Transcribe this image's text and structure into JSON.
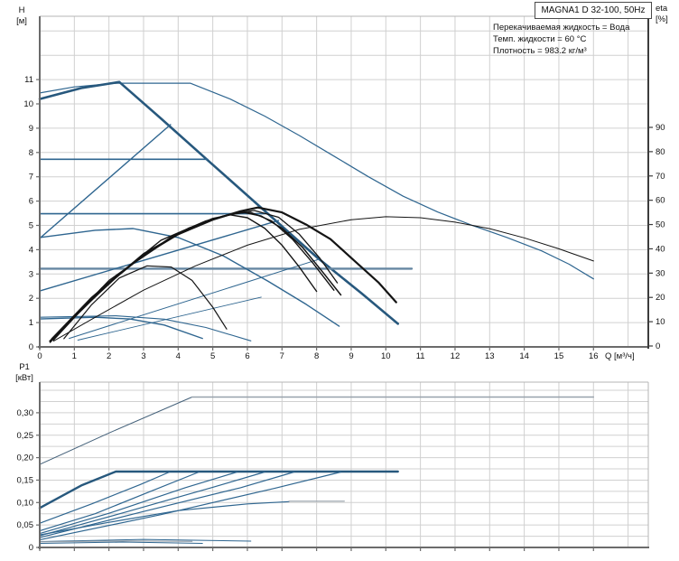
{
  "header": {
    "title": "MAGNA1 D 32-100, 50Hz",
    "info_lines": [
      "Перекачиваемая жидкость = Вода",
      "Темп. жидкости = 60 °C",
      "Плотность = 983.2 кг/м³"
    ]
  },
  "colors": {
    "blue": "#2f6690",
    "thickBlue": "#27587d",
    "grayBlue": "#6687a2",
    "darkSlate": "#44617a",
    "gray": "#97a1ab",
    "black": "#141414",
    "grid": "#d0d0d0",
    "border": "#b5b5b5",
    "axis": "#6b6b6b",
    "text": "#111111"
  },
  "chart_data": [
    {
      "id": "hq",
      "type": "line",
      "title": "H-Q pump curves with efficiency",
      "xlabel": "Q [м³/ч]",
      "ylabel": "H [м]",
      "y2label": "eta [%]",
      "xlim": [
        0,
        17.6
      ],
      "ylim": [
        0,
        13.6
      ],
      "y2lim": [
        0,
        100
      ],
      "grid": true,
      "x_ticks": [
        0,
        1,
        2,
        3,
        4,
        5,
        6,
        7,
        8,
        9,
        10,
        11,
        12,
        13,
        14,
        15,
        16
      ],
      "y_ticks": [
        0,
        1,
        2,
        3,
        4,
        5,
        6,
        7,
        8,
        9,
        10,
        11
      ],
      "y2_ticks": [
        0,
        10,
        20,
        30,
        40,
        50,
        60,
        70,
        80,
        90
      ],
      "series": [
        {
          "name": "qh-max-parallel",
          "color": "blue",
          "w": 1.2,
          "pts": [
            [
              0,
              10.45
            ],
            [
              1,
              10.7
            ],
            [
              2.2,
              10.85
            ],
            [
              4.35,
              10.85
            ],
            [
              5.5,
              10.2
            ],
            [
              6.5,
              9.5
            ],
            [
              7.5,
              8.7
            ],
            [
              8.5,
              7.85
            ],
            [
              9.5,
              7
            ],
            [
              10.5,
              6.2
            ],
            [
              11.5,
              5.55
            ],
            [
              12.5,
              5
            ],
            [
              13.5,
              4.5
            ],
            [
              14.5,
              3.95
            ],
            [
              15.3,
              3.4
            ],
            [
              16,
              2.8
            ]
          ]
        },
        {
          "name": "qh-max-single",
          "color": "thickBlue",
          "w": 2.6,
          "pts": [
            [
              0,
              10.2
            ],
            [
              1.2,
              10.65
            ],
            [
              2.3,
              10.9
            ],
            [
              3.5,
              9.4
            ],
            [
              5,
              7.5
            ],
            [
              6.5,
              5.6
            ],
            [
              8,
              3.7
            ],
            [
              9.3,
              2.2
            ],
            [
              10.35,
              0.95
            ]
          ]
        },
        {
          "name": "cp-curve-7.7m",
          "color": "blue",
          "w": 1.6,
          "pts": [
            [
              0,
              7.72
            ],
            [
              4.85,
              7.72
            ]
          ]
        },
        {
          "name": "cp-curve-5.5m",
          "color": "blue",
          "w": 1.6,
          "pts": [
            [
              0,
              5.48
            ],
            [
              6.5,
              5.48
            ]
          ]
        },
        {
          "name": "cp-curve-3.2m",
          "color": "grayBlue",
          "w": 2.4,
          "pts": [
            [
              0,
              3.22
            ],
            [
              10.75,
              3.22
            ]
          ]
        },
        {
          "name": "qh-min-single",
          "color": "blue",
          "w": 1.4,
          "pts": [
            [
              0,
              1.15
            ],
            [
              1.6,
              1.22
            ],
            [
              2.6,
              1.15
            ],
            [
              3.6,
              0.9
            ],
            [
              4.7,
              0.35
            ]
          ]
        },
        {
          "name": "qh-min-parallel",
          "color": "blue",
          "w": 1.1,
          "pts": [
            [
              0,
              1.22
            ],
            [
              2.2,
              1.28
            ],
            [
              3.6,
              1.14
            ],
            [
              4.8,
              0.8
            ],
            [
              6.1,
              0.25
            ]
          ]
        },
        {
          "name": "pp-curve-high",
          "color": "blue",
          "w": 1.4,
          "pts": [
            [
              0,
              4.47
            ],
            [
              3.78,
              9.15
            ]
          ]
        },
        {
          "name": "pp-curve-mid",
          "color": "blue",
          "w": 1.4,
          "pts": [
            [
              0,
              2.3
            ],
            [
              6.9,
              5.2
            ]
          ]
        },
        {
          "name": "pp-curve-low",
          "color": "blue",
          "w": 1,
          "pts": [
            [
              0.85,
              0.35
            ],
            [
              8.05,
              3.6
            ]
          ]
        },
        {
          "name": "pp-curve-low-2",
          "color": "blue",
          "w": 0.9,
          "pts": [
            [
              1.1,
              0.28
            ],
            [
              6.4,
              2.05
            ]
          ]
        },
        {
          "name": "qh-speed-mid",
          "color": "blue",
          "w": 1.4,
          "pts": [
            [
              0,
              4.5
            ],
            [
              1.6,
              4.8
            ],
            [
              2.7,
              4.87
            ],
            [
              4,
              4.5
            ],
            [
              5.3,
              3.75
            ],
            [
              6.6,
              2.7
            ],
            [
              7.7,
              1.75
            ],
            [
              8.65,
              0.85
            ]
          ]
        },
        {
          "name": "eta-max-parallel",
          "color": "black",
          "w": 1,
          "axis": "y2",
          "pts": [
            [
              0.4,
              2
            ],
            [
              1.5,
              11
            ],
            [
              3,
              23
            ],
            [
              4.5,
              33
            ],
            [
              6,
              41.5
            ],
            [
              7.5,
              48
            ],
            [
              9,
              52
            ],
            [
              10,
              53.2
            ],
            [
              11,
              52.8
            ],
            [
              12,
              51
            ],
            [
              13,
              48.3
            ],
            [
              14,
              44.5
            ],
            [
              15,
              40
            ],
            [
              16,
              35
            ]
          ]
        },
        {
          "name": "eta-max-single",
          "color": "black",
          "w": 2.2,
          "axis": "y2",
          "pts": [
            [
              0.3,
              2
            ],
            [
              1,
              12
            ],
            [
              2,
              26
            ],
            [
              3,
              37.5
            ],
            [
              4,
              46
            ],
            [
              5,
              52
            ],
            [
              5.8,
              55.5
            ],
            [
              6.3,
              57
            ],
            [
              7,
              55
            ],
            [
              7.7,
              50
            ],
            [
              8.4,
              44
            ],
            [
              9.1,
              35
            ],
            [
              9.8,
              26
            ],
            [
              10.3,
              18
            ]
          ]
        },
        {
          "name": "eta-curve-3",
          "color": "black",
          "w": 1.5,
          "axis": "y2",
          "pts": [
            [
              0.35,
              3
            ],
            [
              1.5,
              20
            ],
            [
              3,
              38
            ],
            [
              4.3,
              48.5
            ],
            [
              5.3,
              53.5
            ],
            [
              5.9,
              55
            ],
            [
              6.4,
              53.5
            ],
            [
              7,
              48.5
            ],
            [
              7.6,
              40.5
            ],
            [
              8.2,
              30
            ],
            [
              8.7,
              21
            ]
          ]
        },
        {
          "name": "eta-curve-4",
          "color": "black",
          "w": 1.4,
          "axis": "y2",
          "pts": [
            [
              0.4,
              2.5
            ],
            [
              1.8,
              24
            ],
            [
              3.5,
              43.5
            ],
            [
              4.8,
              51.5
            ],
            [
              5.6,
              54.5
            ],
            [
              6.1,
              55
            ],
            [
              6.7,
              51.5
            ],
            [
              7.3,
              44
            ],
            [
              7.9,
              34
            ],
            [
              8.5,
              23
            ]
          ]
        },
        {
          "name": "eta-curve-5",
          "color": "black",
          "w": 1.4,
          "axis": "y2",
          "pts": [
            [
              0.3,
              1.5
            ],
            [
              1.2,
              15
            ],
            [
              2.5,
              32
            ],
            [
              4,
              46.5
            ],
            [
              5,
              52.5
            ],
            [
              5.5,
              54
            ],
            [
              6,
              52.8
            ],
            [
              6.5,
              48.5
            ],
            [
              7,
              41.5
            ],
            [
              7.5,
              32.5
            ],
            [
              8,
              22.5
            ]
          ]
        },
        {
          "name": "eta-curve-6",
          "color": "black",
          "w": 1.3,
          "axis": "y2",
          "pts": [
            [
              0.45,
              4
            ],
            [
              2,
              27
            ],
            [
              3.8,
              45
            ],
            [
              5,
              52
            ],
            [
              5.7,
              54.8
            ],
            [
              6.2,
              55.8
            ],
            [
              6.9,
              53
            ],
            [
              7.5,
              46
            ],
            [
              8.1,
              36
            ],
            [
              8.6,
              26
            ]
          ]
        },
        {
          "name": "eta-min",
          "color": "black",
          "w": 1.2,
          "axis": "y2",
          "pts": [
            [
              0.7,
              3
            ],
            [
              1.5,
              17
            ],
            [
              2.3,
              28
            ],
            [
              3.1,
              33
            ],
            [
              3.8,
              32.5
            ],
            [
              4.4,
              27
            ],
            [
              5,
              16
            ],
            [
              5.4,
              7
            ]
          ]
        }
      ]
    },
    {
      "id": "p1",
      "type": "line",
      "title": "P1 power curves",
      "xlabel": "",
      "ylabel": "P1 [кВт]",
      "xlim": [
        0,
        17.6
      ],
      "ylim": [
        0,
        0.368
      ],
      "grid": true,
      "x_labels": false,
      "x_ticks": [
        0,
        1,
        2,
        3,
        4,
        5,
        6,
        7,
        8,
        9,
        10,
        11,
        12,
        13,
        14,
        15,
        16
      ],
      "y_ticks": [
        {
          "v": 0,
          "label": "0"
        },
        {
          "v": 0.05,
          "label": "0,05"
        },
        {
          "v": 0.1,
          "label": "0,10"
        },
        {
          "v": 0.15,
          "label": "0,15"
        },
        {
          "v": 0.2,
          "label": "0,20"
        },
        {
          "v": 0.25,
          "label": "0,25"
        },
        {
          "v": 0.3,
          "label": "0,30"
        }
      ],
      "series": [
        {
          "name": "p1-max-parallel-rise",
          "color": "darkSlate",
          "w": 1,
          "pts": [
            [
              0,
              0.185
            ],
            [
              2,
              0.255
            ],
            [
              4.4,
              0.335
            ]
          ]
        },
        {
          "name": "p1-max-parallel-flat",
          "color": "gray",
          "w": 1.4,
          "pts": [
            [
              4.4,
              0.335
            ],
            [
              16,
              0.335
            ]
          ]
        },
        {
          "name": "p1-max-single",
          "color": "thickBlue",
          "w": 2.4,
          "pts": [
            [
              0,
              0.088
            ],
            [
              1.2,
              0.138
            ],
            [
              2.2,
              0.169
            ],
            [
              10.35,
              0.169
            ]
          ]
        },
        {
          "name": "p1-curve-1",
          "color": "blue",
          "w": 1.2,
          "pts": [
            [
              0,
              0.054
            ],
            [
              1.5,
              0.097
            ],
            [
              2.9,
              0.14
            ],
            [
              3.75,
              0.168
            ]
          ]
        },
        {
          "name": "p1-curve-2",
          "color": "blue",
          "w": 1.2,
          "pts": [
            [
              0,
              0.037
            ],
            [
              1.6,
              0.075
            ],
            [
              3.2,
              0.125
            ],
            [
              4.6,
              0.168
            ]
          ]
        },
        {
          "name": "p1-curve-3",
          "color": "blue",
          "w": 1.2,
          "pts": [
            [
              0,
              0.031
            ],
            [
              2,
              0.076
            ],
            [
              4.2,
              0.133
            ],
            [
              5.7,
              0.168
            ]
          ]
        },
        {
          "name": "p1-curve-4",
          "color": "blue",
          "w": 1.2,
          "pts": [
            [
              0,
              0.026
            ],
            [
              2.5,
              0.079
            ],
            [
              5,
              0.134
            ],
            [
              6.5,
              0.168
            ]
          ]
        },
        {
          "name": "p1-curve-5",
          "color": "blue",
          "w": 1.2,
          "pts": [
            [
              0,
              0.022
            ],
            [
              3,
              0.08
            ],
            [
              5.8,
              0.133
            ],
            [
              7.35,
              0.168
            ]
          ]
        },
        {
          "name": "p1-curve-6",
          "color": "blue",
          "w": 1.2,
          "pts": [
            [
              0,
              0.017
            ],
            [
              3.5,
              0.073
            ],
            [
              6.8,
              0.132
            ],
            [
              8.7,
              0.168
            ]
          ]
        },
        {
          "name": "p1-speed-mid",
          "color": "blue",
          "w": 1.2,
          "pts": [
            [
              0,
              0.028
            ],
            [
              2,
              0.056
            ],
            [
              4,
              0.082
            ],
            [
              6,
              0.097
            ],
            [
              7.2,
              0.102
            ]
          ]
        },
        {
          "name": "p1-speed-mid-flat",
          "color": "gray",
          "w": 1.2,
          "pts": [
            [
              7.2,
              0.103
            ],
            [
              8.8,
              0.103
            ]
          ]
        },
        {
          "name": "p1-min-1",
          "color": "blue",
          "w": 1.1,
          "pts": [
            [
              0,
              0.009
            ],
            [
              2.4,
              0.012
            ],
            [
              4.7,
              0.009
            ]
          ]
        },
        {
          "name": "p1-min-2",
          "color": "blue",
          "w": 1,
          "pts": [
            [
              0,
              0.013
            ],
            [
              3,
              0.018
            ],
            [
              6.1,
              0.014
            ]
          ]
        },
        {
          "name": "p1-min-flat",
          "color": "gray",
          "w": 1.2,
          "pts": [
            [
              0,
              0.0125
            ],
            [
              2.6,
              0.0145
            ],
            [
              4.4,
              0.0135
            ]
          ]
        }
      ]
    }
  ]
}
